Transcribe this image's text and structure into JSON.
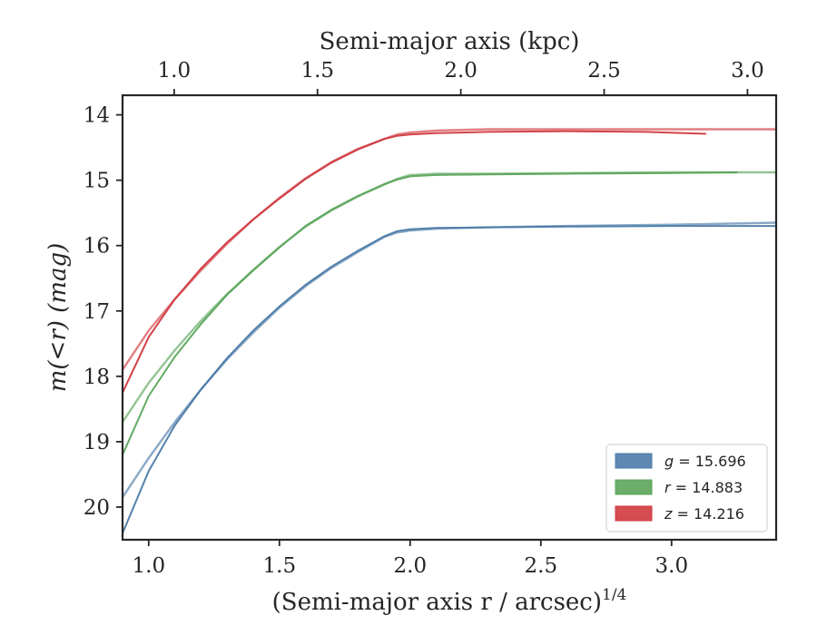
{
  "chart_data": {
    "type": "line",
    "xlabel": "(Semi-major axis r / arcsec)",
    "xlabel_sup": "1/4",
    "ylabel": "m(<r) (mag)",
    "top_xlabel": "Semi-major axis (kpc)",
    "xlim": [
      0.9,
      3.4
    ],
    "ylim": [
      20.5,
      13.7
    ],
    "y_inverted": true,
    "top_xlim": [
      0.82,
      3.1
    ],
    "x_ticks": [
      "1.0",
      "1.5",
      "2.0",
      "2.5",
      "3.0"
    ],
    "x_tick_values": [
      1.0,
      1.5,
      2.0,
      2.5,
      3.0
    ],
    "y_ticks": [
      "14",
      "15",
      "16",
      "17",
      "18",
      "19",
      "20"
    ],
    "y_tick_values": [
      14,
      15,
      16,
      17,
      18,
      19,
      20
    ],
    "top_ticks": [
      "1.0",
      "1.5",
      "2.0",
      "2.5",
      "3.0"
    ],
    "top_tick_values": [
      1.0,
      1.5,
      2.0,
      2.5,
      3.0
    ],
    "grid": false,
    "legend_position": "bottom-right",
    "series": [
      {
        "name": "g = 15.696",
        "band": "g",
        "value": "15.696",
        "color": "#4c7ba8",
        "curves": [
          {
            "x": [
              0.9,
              1.0,
              1.1,
              1.2,
              1.3,
              1.4,
              1.5,
              1.6,
              1.7,
              1.8,
              1.9,
              1.95,
              2.0,
              2.1,
              2.3,
              2.6,
              3.0,
              3.4
            ],
            "y": [
              20.4,
              19.45,
              18.75,
              18.2,
              17.72,
              17.3,
              16.93,
              16.6,
              16.32,
              16.08,
              15.86,
              15.78,
              15.75,
              15.73,
              15.72,
              15.71,
              15.7,
              15.7
            ]
          },
          {
            "x": [
              0.9,
              1.0,
              1.1,
              1.2,
              1.3,
              1.4,
              1.5,
              1.6,
              1.7,
              1.8,
              1.9,
              1.95,
              2.0,
              2.1,
              2.3,
              2.6,
              3.0,
              3.4
            ],
            "y": [
              19.85,
              19.25,
              18.7,
              18.2,
              17.74,
              17.33,
              16.95,
              16.62,
              16.34,
              16.1,
              15.87,
              15.8,
              15.77,
              15.74,
              15.72,
              15.7,
              15.68,
              15.65
            ]
          }
        ]
      },
      {
        "name": "r = 14.883",
        "band": "r",
        "value": "14.883",
        "color": "#5aa55a",
        "curves": [
          {
            "x": [
              0.9,
              1.0,
              1.1,
              1.2,
              1.3,
              1.4,
              1.5,
              1.6,
              1.7,
              1.8,
              1.9,
              1.95,
              2.0,
              2.1,
              2.3,
              2.6,
              3.0,
              3.25
            ],
            "y": [
              19.2,
              18.3,
              17.7,
              17.2,
              16.75,
              16.38,
              16.03,
              15.7,
              15.45,
              15.24,
              15.06,
              14.99,
              14.94,
              14.92,
              14.91,
              14.9,
              14.89,
              14.88
            ]
          },
          {
            "x": [
              0.9,
              1.0,
              1.1,
              1.2,
              1.3,
              1.4,
              1.5,
              1.6,
              1.7,
              1.8,
              1.9,
              1.95,
              2.0,
              2.1,
              2.3,
              2.6,
              3.0,
              3.4
            ],
            "y": [
              18.7,
              18.1,
              17.6,
              17.15,
              16.74,
              16.37,
              16.02,
              15.71,
              15.46,
              15.25,
              15.07,
              14.98,
              14.92,
              14.9,
              14.9,
              14.89,
              14.88,
              14.88
            ]
          }
        ]
      },
      {
        "name": "z = 14.216",
        "band": "z",
        "value": "14.216",
        "color": "#d0393f",
        "curves": [
          {
            "x": [
              0.9,
              1.0,
              1.1,
              1.2,
              1.3,
              1.4,
              1.5,
              1.6,
              1.7,
              1.8,
              1.9,
              1.95,
              2.0,
              2.1,
              2.3,
              2.6,
              2.9,
              3.13
            ],
            "y": [
              18.25,
              17.4,
              16.82,
              16.35,
              15.95,
              15.6,
              15.28,
              14.98,
              14.73,
              14.53,
              14.37,
              14.32,
              14.3,
              14.28,
              14.26,
              14.25,
              14.26,
              14.29
            ]
          },
          {
            "x": [
              0.9,
              1.0,
              1.1,
              1.2,
              1.3,
              1.4,
              1.5,
              1.6,
              1.7,
              1.8,
              1.9,
              1.95,
              2.0,
              2.1,
              2.3,
              2.6,
              3.0,
              3.4
            ],
            "y": [
              17.9,
              17.3,
              16.82,
              16.38,
              15.97,
              15.6,
              15.27,
              14.97,
              14.72,
              14.52,
              14.37,
              14.3,
              14.27,
              14.24,
              14.22,
              14.22,
              14.22,
              14.22
            ]
          }
        ]
      }
    ]
  }
}
